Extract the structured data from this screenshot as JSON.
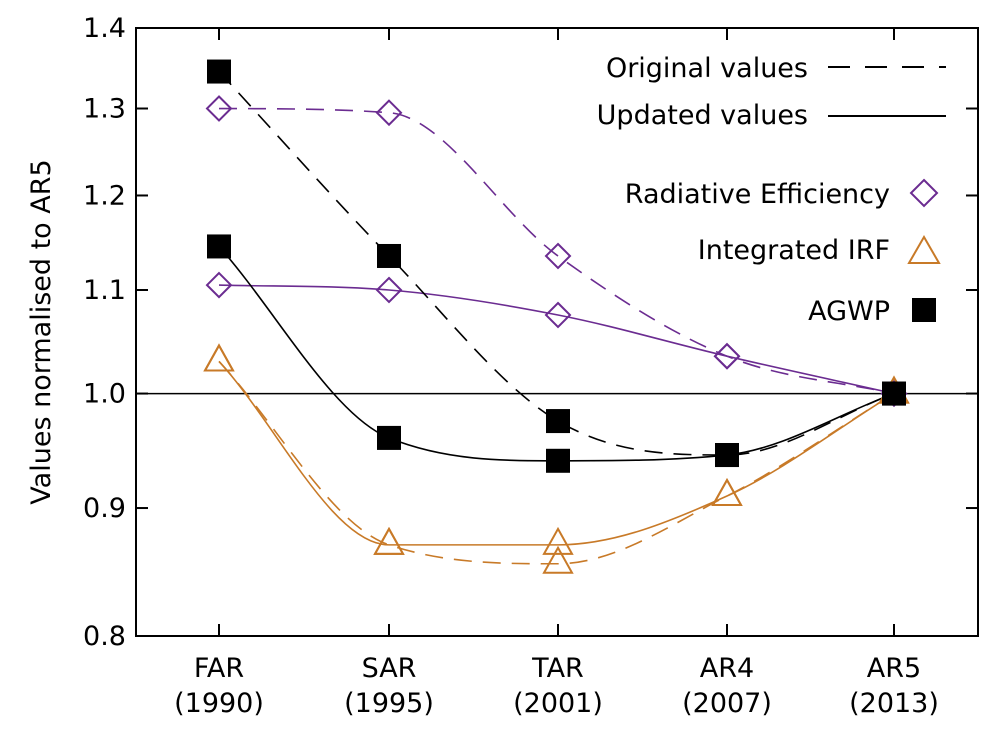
{
  "chart_data": {
    "type": "line",
    "title": "",
    "xlabel": "",
    "ylabel": "Values normalised to AR5",
    "ylim": [
      0.8,
      1.4
    ],
    "yticks": [
      "0.8",
      "0.9",
      "1.0",
      "1.1",
      "1.2",
      "1.3",
      "1.4"
    ],
    "yscale": "log",
    "categories": [
      {
        "name": "FAR",
        "year": "(1990)"
      },
      {
        "name": "SAR",
        "year": "(1995)"
      },
      {
        "name": "TAR",
        "year": "(2001)"
      },
      {
        "name": "AR4",
        "year": "(2007)"
      },
      {
        "name": "AR5",
        "year": "(2013)"
      }
    ],
    "reference_line": 1.0,
    "grid": false,
    "colors": {
      "radiative_efficiency": "#6b2c91",
      "integrated_irf": "#c87a28",
      "agwp": "#000000"
    },
    "legend": {
      "placement": "top-right",
      "original": "Original values",
      "updated": "Updated values",
      "radiative_efficiency": "Radiative Efficiency",
      "integrated_irf": "Integrated IRF",
      "agwp": "AGWP"
    },
    "series": [
      {
        "quantity": "radiative_efficiency",
        "version": "original",
        "marker": "diamond",
        "values": [
          1.3,
          1.295,
          1.135,
          1.035,
          1.0
        ]
      },
      {
        "quantity": "radiative_efficiency",
        "version": "updated",
        "marker": "diamond",
        "values": [
          1.105,
          1.1,
          1.075,
          1.035,
          1.0
        ]
      },
      {
        "quantity": "integrated_irf",
        "version": "original",
        "marker": "triangle",
        "values": [
          1.03,
          0.87,
          0.855,
          0.91,
          1.0
        ]
      },
      {
        "quantity": "integrated_irf",
        "version": "updated",
        "marker": "triangle",
        "values": [
          1.03,
          0.87,
          0.87,
          0.91,
          1.0
        ]
      },
      {
        "quantity": "agwp",
        "version": "original",
        "marker": "square",
        "values": [
          1.345,
          1.135,
          0.975,
          0.945,
          1.0
        ]
      },
      {
        "quantity": "agwp",
        "version": "updated",
        "marker": "square",
        "values": [
          1.145,
          0.96,
          0.94,
          0.945,
          1.0
        ]
      }
    ]
  }
}
